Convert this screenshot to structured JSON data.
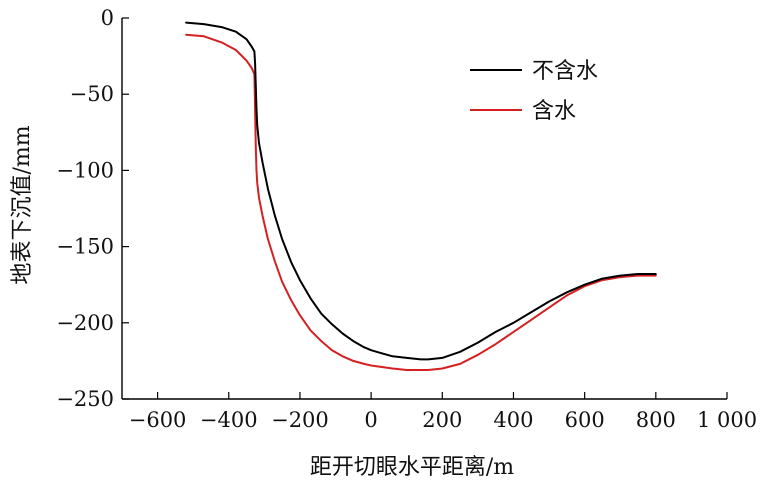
{
  "chart_data": {
    "type": "line",
    "title": "",
    "xlabel": "距开切眼水平距离/m",
    "ylabel": "地表下沉值/mm",
    "xlim": [
      -700,
      1000
    ],
    "ylim": [
      -250,
      0
    ],
    "x_ticks": [
      -600,
      -400,
      -200,
      0,
      200,
      400,
      600,
      800,
      1000
    ],
    "x_tick_labels": [
      "−600",
      "−400",
      "−200",
      "0",
      "200",
      "400",
      "600",
      "800",
      "1 000"
    ],
    "y_ticks": [
      0,
      -50,
      -100,
      -150,
      -200,
      -250
    ],
    "y_tick_labels": [
      "0",
      "−50",
      "−100",
      "−150",
      "−200",
      "−250"
    ],
    "grid": false,
    "legend_position": "top-right",
    "series": [
      {
        "name": "不含水",
        "color": "#000000",
        "x": [
          -520,
          -470,
          -420,
          -380,
          -350,
          -335,
          -328,
          -326,
          -324,
          -322,
          -320,
          -315,
          -305,
          -290,
          -270,
          -250,
          -225,
          -200,
          -170,
          -140,
          -110,
          -80,
          -50,
          -20,
          0,
          30,
          60,
          100,
          140,
          160,
          200,
          250,
          300,
          350,
          400,
          450,
          500,
          550,
          600,
          650,
          700,
          750,
          800
        ],
        "y": [
          -3,
          -4,
          -6,
          -9,
          -14,
          -19,
          -22,
          -30,
          -45,
          -60,
          -70,
          -82,
          -95,
          -112,
          -130,
          -145,
          -160,
          -172,
          -184,
          -194,
          -201,
          -207,
          -212,
          -216,
          -218,
          -220,
          -222,
          -223,
          -224,
          -224,
          -223,
          -219,
          -213,
          -206,
          -200,
          -193,
          -186,
          -180,
          -175,
          -171,
          -169,
          -168,
          -168
        ]
      },
      {
        "name": "含水",
        "color": "#d42020",
        "x": [
          -520,
          -470,
          -420,
          -380,
          -350,
          -335,
          -328,
          -326,
          -324,
          -322,
          -320,
          -315,
          -305,
          -290,
          -270,
          -250,
          -225,
          -200,
          -170,
          -140,
          -110,
          -80,
          -50,
          -20,
          0,
          30,
          60,
          100,
          140,
          160,
          200,
          250,
          300,
          350,
          400,
          450,
          500,
          550,
          600,
          650,
          700,
          750,
          800
        ],
        "y": [
          -11,
          -12,
          -16,
          -21,
          -28,
          -33,
          -37,
          -60,
          -85,
          -100,
          -108,
          -118,
          -130,
          -145,
          -160,
          -173,
          -185,
          -195,
          -205,
          -212,
          -218,
          -222,
          -225,
          -227,
          -228,
          -229,
          -230,
          -231,
          -231,
          -231,
          -230,
          -227,
          -221,
          -214,
          -206,
          -198,
          -190,
          -182,
          -176,
          -172,
          -170,
          -169,
          -169
        ]
      }
    ]
  }
}
